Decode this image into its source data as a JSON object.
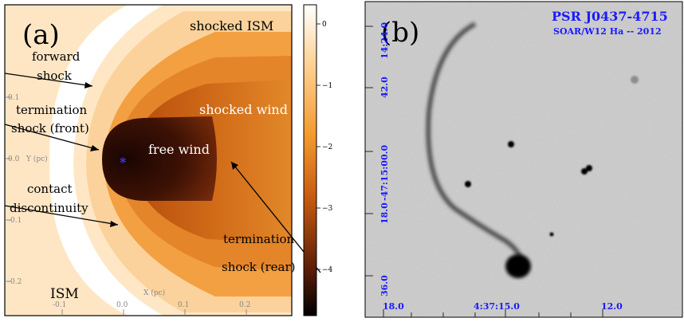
{
  "panel_a": {
    "letter": "(a)",
    "regions": {
      "shocked_ism": "shocked ISM",
      "shocked_wind": "shocked wind",
      "free_wind": "free wind",
      "ism": "ISM"
    },
    "labels": {
      "forward_shock_1": "forward",
      "forward_shock_2": "shock",
      "termination_front_1": "termination",
      "termination_front_2": "shock (front)",
      "contact_1": "contact",
      "contact_2": "discontinuity",
      "termination_rear_1": "termination",
      "termination_rear_2": "shock (rear)"
    },
    "axes": {
      "x_label": "X (pc)",
      "y_label": "Y (pc)",
      "x_ticks": [
        "-0.1",
        "0.0",
        "0.1",
        "0.2"
      ],
      "y_ticks": [
        "0.1",
        "0.0",
        "-0.1",
        "-0.2"
      ]
    },
    "colorbar": {
      "ticks": [
        "0",
        "−1",
        "−2",
        "−3",
        "−4"
      ],
      "colors": [
        "#ffffff",
        "#ffd49a",
        "#f39a2e",
        "#c85a10",
        "#5a1e08",
        "#000000"
      ]
    },
    "pulsar_symbol": "*"
  },
  "panel_b": {
    "letter": "(b)",
    "title": "PSR J0437-4715",
    "subtitle": "SOAR/W12 Ha -- 2012",
    "dec_ticks": [
      "14:24.0",
      "42.0",
      "-47:15:00.0",
      "18.0",
      "36.0"
    ],
    "ra_ticks": [
      "18.0",
      "4:37:15.0",
      "12.0"
    ],
    "accent_color": "#1a1aff"
  }
}
